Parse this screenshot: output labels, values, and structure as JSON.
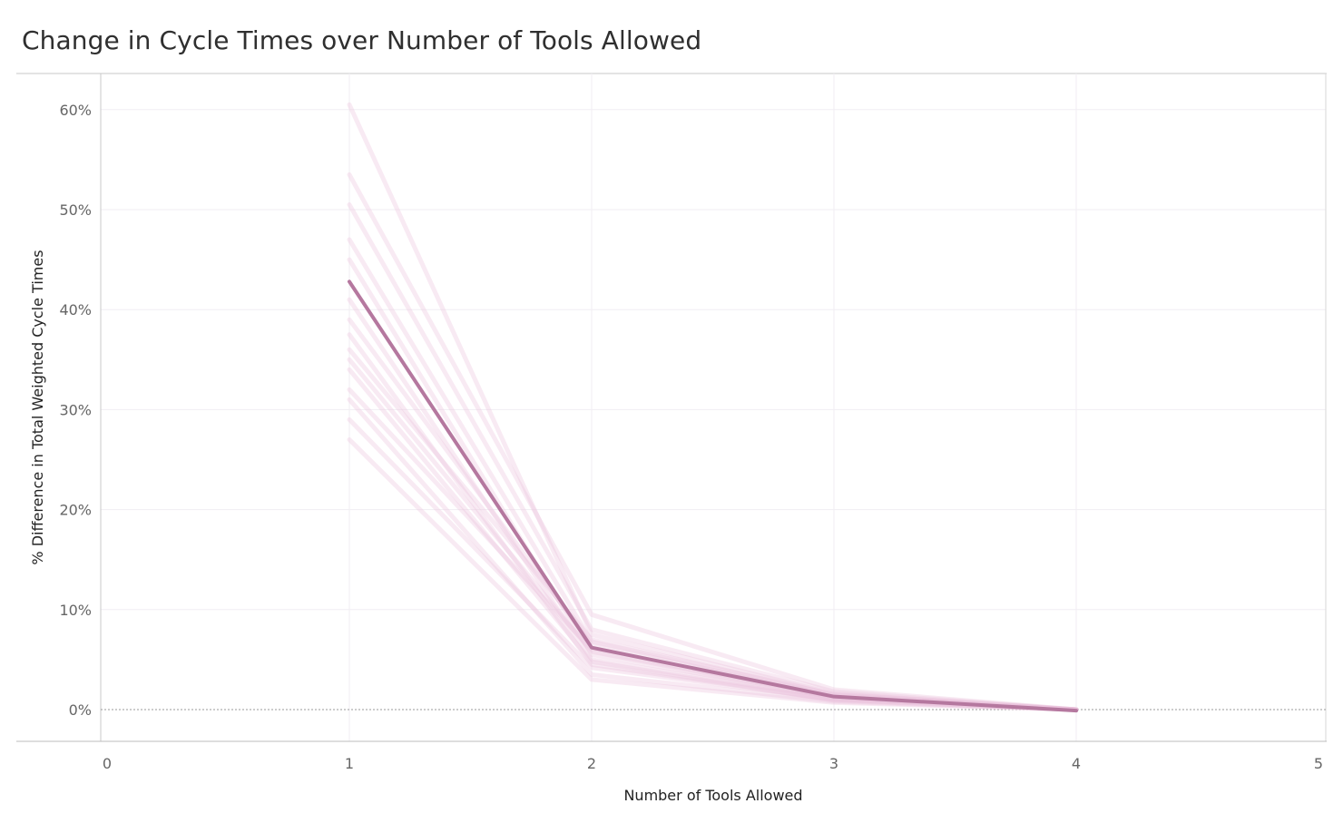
{
  "chart_data": {
    "type": "line",
    "title": "Change in Cycle Times over Number of Tools Allowed",
    "xlabel": "Number of Tools Allowed",
    "ylabel": "% Difference in Total Weighted Cycle Times",
    "xlim": [
      0,
      5
    ],
    "ylim": [
      -3.2,
      63.5
    ],
    "x_ticks": [
      0,
      1,
      2,
      3,
      4,
      5
    ],
    "x_tick_labels": [
      "0",
      "1",
      "2",
      "3",
      "4",
      "5"
    ],
    "y_ticks": [
      0,
      10,
      20,
      30,
      40,
      50,
      60
    ],
    "y_tick_labels": [
      "0%",
      "10%",
      "20%",
      "30%",
      "40%",
      "50%",
      "60%"
    ],
    "grid": true,
    "reference_line_y": 0,
    "main_series": {
      "x": [
        1,
        2,
        3,
        4
      ],
      "values": [
        42.8,
        6.2,
        1.3,
        -0.1
      ],
      "color": "#b5789f"
    },
    "background_series_color": "#ecc3de",
    "background_series": [
      {
        "x": [
          1,
          2,
          3,
          4
        ],
        "values": [
          60.5,
          7.5,
          1.6,
          0
        ]
      },
      {
        "x": [
          1,
          2,
          3,
          4
        ],
        "values": [
          53.5,
          9.5,
          2.0,
          0
        ]
      },
      {
        "x": [
          1,
          2,
          3,
          4
        ],
        "values": [
          50.5,
          8.0,
          1.8,
          0
        ]
      },
      {
        "x": [
          1,
          2,
          3,
          4
        ],
        "values": [
          47.0,
          6.8,
          1.5,
          0
        ]
      },
      {
        "x": [
          1,
          2,
          3,
          4
        ],
        "values": [
          45.0,
          5.5,
          1.2,
          0
        ]
      },
      {
        "x": [
          1,
          2,
          3,
          4
        ],
        "values": [
          41.0,
          5.0,
          1.1,
          0
        ]
      },
      {
        "x": [
          1,
          2,
          3,
          4
        ],
        "values": [
          39.0,
          6.5,
          1.4,
          0
        ]
      },
      {
        "x": [
          1,
          2,
          3,
          4
        ],
        "values": [
          37.5,
          4.5,
          1.0,
          0
        ]
      },
      {
        "x": [
          1,
          2,
          3,
          4
        ],
        "values": [
          36.0,
          7.0,
          1.5,
          0
        ]
      },
      {
        "x": [
          1,
          2,
          3,
          4
        ],
        "values": [
          35.0,
          5.8,
          1.2,
          0
        ]
      },
      {
        "x": [
          1,
          2,
          3,
          4
        ],
        "values": [
          34.0,
          4.8,
          0.9,
          0
        ]
      },
      {
        "x": [
          1,
          2,
          3,
          4
        ],
        "values": [
          32.0,
          6.0,
          1.3,
          0
        ]
      },
      {
        "x": [
          1,
          2,
          3,
          4
        ],
        "values": [
          31.0,
          3.5,
          0.8,
          0
        ]
      },
      {
        "x": [
          1,
          2,
          3,
          4
        ],
        "values": [
          29.0,
          4.2,
          1.0,
          0
        ]
      },
      {
        "x": [
          1,
          2,
          3,
          4
        ],
        "values": [
          27.0,
          3.0,
          0.7,
          0
        ]
      }
    ]
  }
}
